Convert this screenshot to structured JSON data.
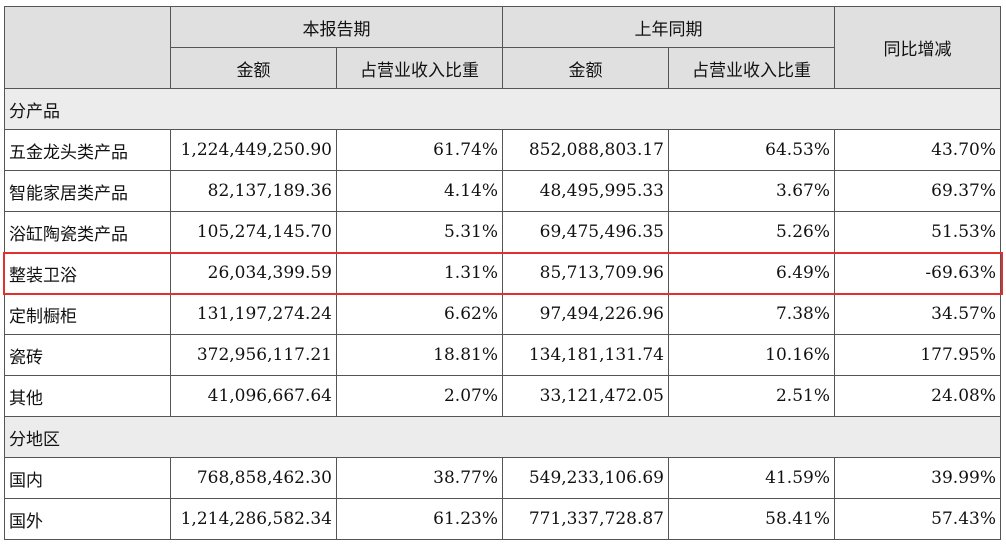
{
  "header": {
    "group_current": "本报告期",
    "group_prior": "上年同期",
    "yoy": "同比增减",
    "amount": "金额",
    "ratio": "占营业收入比重"
  },
  "sections": {
    "product": "分产品",
    "region": "分地区"
  },
  "product_rows": [
    {
      "name": "五金龙头类产品",
      "cur_amount": "1,224,449,250.90",
      "cur_ratio": "61.74%",
      "prior_amount": "852,088,803.17",
      "prior_ratio": "64.53%",
      "yoy": "43.70%"
    },
    {
      "name": "智能家居类产品",
      "cur_amount": "82,137,189.36",
      "cur_ratio": "4.14%",
      "prior_amount": "48,495,995.33",
      "prior_ratio": "3.67%",
      "yoy": "69.37%"
    },
    {
      "name": "浴缸陶瓷类产品",
      "cur_amount": "105,274,145.70",
      "cur_ratio": "5.31%",
      "prior_amount": "69,475,496.35",
      "prior_ratio": "5.26%",
      "yoy": "51.53%"
    },
    {
      "name": "整装卫浴",
      "cur_amount": "26,034,399.59",
      "cur_ratio": "1.31%",
      "prior_amount": "85,713,709.96",
      "prior_ratio": "6.49%",
      "yoy": "-69.63%"
    },
    {
      "name": "定制橱柜",
      "cur_amount": "131,197,274.24",
      "cur_ratio": "6.62%",
      "prior_amount": "97,494,226.96",
      "prior_ratio": "7.38%",
      "yoy": "34.57%"
    },
    {
      "name": "瓷砖",
      "cur_amount": "372,956,117.21",
      "cur_ratio": "18.81%",
      "prior_amount": "134,181,131.74",
      "prior_ratio": "10.16%",
      "yoy": "177.95%"
    },
    {
      "name": "其他",
      "cur_amount": "41,096,667.64",
      "cur_ratio": "2.07%",
      "prior_amount": "33,121,472.05",
      "prior_ratio": "2.51%",
      "yoy": "24.08%"
    }
  ],
  "region_rows": [
    {
      "name": "国内",
      "cur_amount": "768,858,462.30",
      "cur_ratio": "38.77%",
      "prior_amount": "549,233,106.69",
      "prior_ratio": "41.59%",
      "yoy": "39.99%"
    },
    {
      "name": "国外",
      "cur_amount": "1,214,286,582.34",
      "cur_ratio": "61.23%",
      "prior_amount": "771,337,728.87",
      "prior_ratio": "58.41%",
      "yoy": "57.43%"
    }
  ],
  "highlight_color": "#e03030"
}
